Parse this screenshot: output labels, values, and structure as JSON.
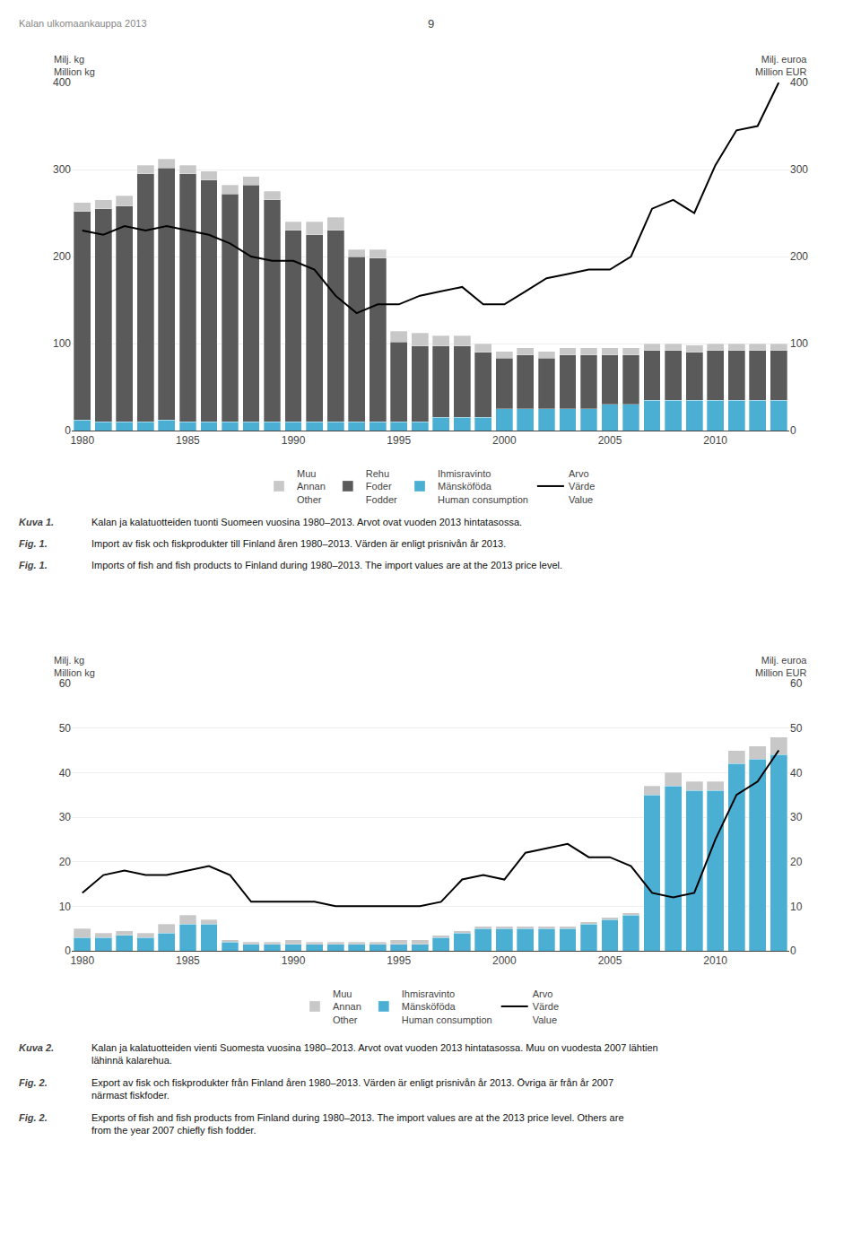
{
  "chart_data": [
    {
      "type": "bar",
      "stacked": true,
      "grid": true,
      "legend": "bottom",
      "annotations": [
        "Kalan ulkomaankauppa 2013",
        "9"
      ],
      "ylabel": "Milj. kg\nMillion kg",
      "y2label": "Milj. euroa\nMillion EUR",
      "x": [
        1980,
        1981,
        1982,
        1983,
        1984,
        1985,
        1986,
        1987,
        1988,
        1989,
        1990,
        1991,
        1992,
        1993,
        1994,
        1995,
        1996,
        1997,
        1998,
        1999,
        2000,
        2001,
        2002,
        2003,
        2004,
        2005,
        2006,
        2007,
        2008,
        2009,
        2010,
        2011,
        2012,
        2013
      ],
      "xlim": [
        1979.5,
        2013.5
      ],
      "xticks": [
        1980,
        1985,
        1990,
        1995,
        2000,
        2005,
        2010
      ],
      "ylim": [
        0,
        400
      ],
      "yticks": [
        0,
        100,
        200,
        300,
        400
      ],
      "y2lim": [
        0,
        400
      ],
      "y2ticks": [
        0,
        100,
        200,
        300,
        400
      ],
      "series": [
        {
          "name": "Ihmisravinto\nMänsköföda\nHuman consumption",
          "color": "#4bafd4",
          "values": [
            12,
            10,
            10,
            10,
            12,
            10,
            10,
            10,
            10,
            10,
            10,
            10,
            10,
            10,
            10,
            10,
            10,
            15,
            15,
            15,
            25,
            25,
            25,
            25,
            25,
            30,
            30,
            35,
            35,
            35,
            35,
            35,
            35,
            35
          ]
        },
        {
          "name": "Rehu\nFoder\nFodder",
          "color": "#5a5a5a",
          "values": [
            240,
            245,
            248,
            285,
            290,
            285,
            278,
            262,
            272,
            255,
            220,
            215,
            220,
            190,
            188,
            92,
            87,
            82,
            82,
            75,
            58,
            62,
            58,
            62,
            62,
            57,
            57,
            57,
            57,
            55,
            57,
            57,
            57,
            57
          ]
        },
        {
          "name": "Muu\nAnnan\nOther",
          "color": "#c8c8c8",
          "values": [
            10,
            10,
            12,
            10,
            10,
            10,
            10,
            10,
            10,
            10,
            10,
            15,
            15,
            8,
            10,
            12,
            15,
            12,
            12,
            10,
            8,
            8,
            8,
            8,
            8,
            8,
            8,
            8,
            8,
            8,
            8,
            8,
            8,
            8
          ]
        },
        {
          "name": "Arvo\nVärde\nValue",
          "type": "line",
          "axis": "y2",
          "color": "#000000",
          "values": [
            230,
            225,
            235,
            230,
            235,
            230,
            225,
            215,
            200,
            195,
            195,
            185,
            155,
            135,
            145,
            145,
            155,
            160,
            165,
            145,
            145,
            160,
            175,
            180,
            185,
            185,
            200,
            255,
            265,
            250,
            305,
            345,
            350,
            400
          ]
        }
      ],
      "caption": [
        [
          "Kuva 1.",
          "Kalan ja kalatuotteiden tuonti Suomeen vuosina 1980–2013. Arvot ovat vuoden 2013 hintatasossa."
        ],
        [
          "Fig. 1.",
          "Import av fisk och fiskprodukter till Finland åren 1980–2013. Värden är enligt prisnivån år 2013."
        ],
        [
          "Fig. 1.",
          "Imports of fish and fish products to Finland during 1980–2013. The import values are at the 2013 price level."
        ]
      ]
    },
    {
      "type": "bar",
      "stacked": true,
      "grid": true,
      "legend": "bottom",
      "ylabel": "Milj. kg\nMillion kg",
      "y2label": "Milj. euroa\nMillion EUR",
      "x": [
        1980,
        1981,
        1982,
        1983,
        1984,
        1985,
        1986,
        1987,
        1988,
        1989,
        1990,
        1991,
        1992,
        1993,
        1994,
        1995,
        1996,
        1997,
        1998,
        1999,
        2000,
        2001,
        2002,
        2003,
        2004,
        2005,
        2006,
        2007,
        2008,
        2009,
        2010,
        2011,
        2012,
        2013
      ],
      "xlim": [
        1979.5,
        2013.5
      ],
      "xticks": [
        1980,
        1985,
        1990,
        1995,
        2000,
        2005,
        2010
      ],
      "ylim": [
        0,
        60
      ],
      "yticks": [
        0,
        10,
        20,
        30,
        40,
        50,
        60
      ],
      "y2lim": [
        0,
        60
      ],
      "y2ticks": [
        0,
        10,
        20,
        30,
        40,
        50,
        60
      ],
      "series": [
        {
          "name": "Ihmisravinto\nMänsköföda\nHuman consumption",
          "color": "#4bafd4",
          "values": [
            3,
            3,
            3.5,
            3,
            4,
            6,
            6,
            2,
            1.5,
            1.5,
            1.5,
            1.5,
            1.5,
            1.5,
            1.5,
            1.5,
            1.5,
            3,
            4,
            5,
            5,
            5,
            5,
            5,
            6,
            7,
            8,
            35,
            37,
            36,
            36,
            42,
            43,
            44
          ]
        },
        {
          "name": "Muu\nAnnan\nOther",
          "color": "#c8c8c8",
          "values": [
            2,
            1,
            1,
            1,
            2,
            2,
            1,
            0.5,
            0.5,
            0.5,
            1,
            0.5,
            0.5,
            0.5,
            0.5,
            1,
            1,
            0.5,
            0.5,
            0.5,
            0.5,
            0.5,
            0.5,
            0.5,
            0.5,
            0.5,
            0.5,
            2,
            3,
            2,
            2,
            3,
            3,
            4
          ]
        },
        {
          "name": "Arvo\nVärde\nValue",
          "type": "line",
          "axis": "y2",
          "color": "#000000",
          "values": [
            13,
            17,
            18,
            17,
            17,
            18,
            19,
            17,
            11,
            11,
            11,
            11,
            10,
            10,
            10,
            10,
            10,
            11,
            16,
            17,
            16,
            22,
            23,
            24,
            21,
            21,
            19,
            13,
            12,
            13,
            25,
            35,
            38,
            45
          ]
        }
      ],
      "caption": [
        [
          "Kuva 2.",
          "Kalan ja kalatuotteiden vienti Suomesta vuosina 1980–2013. Arvot ovat vuoden 2013 hintatasossa. Muu on vuodesta 2007 lähtien lähinnä kalarehua."
        ],
        [
          "Fig. 2.",
          "Export av fisk och fiskprodukter från Finland åren 1980–2013. Värden är enligt prisnivån år 2013. Övriga är från år 2007 närmast fiskfoder."
        ],
        [
          "Fig. 2.",
          "Exports of fish and fish products from Finland during 1980–2013. The import values are at the 2013 price level. Others are from the year 2007 chiefly fish fodder."
        ]
      ]
    }
  ]
}
